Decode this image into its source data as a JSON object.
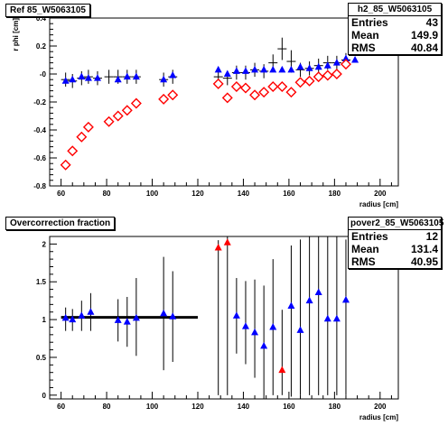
{
  "chart_data": [
    {
      "type": "scatter",
      "title": "Ref 85_W5063105",
      "xlabel": "radius [cm]",
      "ylabel": "r phi [cm]",
      "xlim": [
        55,
        208
      ],
      "ylim": [
        -0.8,
        0.4
      ],
      "x_ticks": [
        60,
        80,
        100,
        120,
        140,
        160,
        180,
        200
      ],
      "y_ticks": [
        -0.8,
        -0.6,
        -0.4,
        -0.2,
        0,
        0.2,
        0.4
      ],
      "y_tick_labels": [
        "-0.8",
        "-0.6",
        "-0.4",
        "-0.2",
        "-0",
        "0.2",
        "0.4"
      ],
      "stats": {
        "name": "h2_85_W5063105",
        "rows": [
          [
            "Entries",
            "43"
          ],
          [
            "Mean",
            "149.9"
          ],
          [
            "RMS",
            "40.84"
          ]
        ]
      },
      "series": [
        {
          "marker": "cross",
          "color": "#000000",
          "x": [
            62,
            65,
            69,
            72,
            76,
            81,
            85,
            89,
            93,
            105,
            109,
            129,
            133,
            137,
            141,
            145,
            149,
            153,
            157,
            161,
            165,
            169,
            173,
            177,
            181,
            185,
            189
          ],
          "y": [
            -0.04,
            -0.05,
            -0.03,
            -0.02,
            -0.03,
            -0.02,
            -0.02,
            -0.02,
            -0.02,
            -0.04,
            -0.02,
            -0.02,
            -0.03,
            0.01,
            0.01,
            0.03,
            0.02,
            0.08,
            0.18,
            0.09,
            0.03,
            0.04,
            0.06,
            0.08,
            0.08,
            0.1,
            0.24
          ],
          "yerr": [
            0.05,
            0.05,
            0.05,
            0.05,
            0.05,
            0.05,
            0.05,
            0.05,
            0.05,
            0.05,
            0.05,
            0.05,
            0.05,
            0.05,
            0.05,
            0.05,
            0.05,
            0.06,
            0.08,
            0.08,
            0.05,
            0.05,
            0.05,
            0.05,
            0.05,
            0.05,
            0.06
          ]
        },
        {
          "marker": "triangle",
          "color": "#0000ff",
          "x": [
            62,
            65,
            69,
            72,
            76,
            85,
            89,
            93,
            105,
            109,
            129,
            133,
            137,
            141,
            145,
            149,
            153,
            157,
            161,
            165,
            169,
            173,
            177,
            181,
            185,
            189
          ],
          "y": [
            -0.05,
            -0.04,
            -0.02,
            -0.03,
            -0.03,
            -0.04,
            -0.02,
            -0.02,
            -0.04,
            -0.01,
            0.03,
            0.0,
            0.02,
            0.02,
            0.03,
            0.03,
            0.03,
            0.03,
            0.03,
            0.05,
            0.04,
            0.05,
            0.06,
            0.08,
            0.11,
            0.1
          ]
        },
        {
          "marker": "open-diamond",
          "color": "#ff0000",
          "x": [
            62,
            65,
            69,
            72,
            81,
            85,
            89,
            93,
            105,
            109,
            129,
            133,
            137,
            141,
            145,
            149,
            153,
            157,
            161,
            165,
            169,
            173,
            177,
            181,
            185,
            189
          ],
          "y": [
            -0.65,
            -0.55,
            -0.45,
            -0.38,
            -0.34,
            -0.3,
            -0.26,
            -0.21,
            -0.18,
            -0.15,
            -0.07,
            -0.17,
            -0.09,
            -0.1,
            -0.15,
            -0.13,
            -0.09,
            -0.09,
            -0.13,
            -0.06,
            -0.05,
            -0.02,
            -0.01,
            0.0,
            0.07,
            0.21
          ]
        }
      ]
    },
    {
      "type": "scatter",
      "title": "Overcorrection fraction",
      "xlabel": "radius [cm]",
      "ylabel": "",
      "xlim": [
        55,
        208
      ],
      "ylim": [
        -0.05,
        2.1
      ],
      "x_ticks": [
        60,
        80,
        100,
        120,
        140,
        160,
        180,
        200
      ],
      "y_ticks": [
        0,
        0.5,
        1,
        1.5,
        2
      ],
      "y_tick_labels": [
        "0",
        "0.5",
        "1",
        "1.5",
        "2"
      ],
      "stats": {
        "name": "pover2_85_W5063105",
        "rows": [
          [
            "Entries",
            "12"
          ],
          [
            "Mean",
            "131.4"
          ],
          [
            "RMS",
            "40.95"
          ]
        ]
      },
      "reference_line": {
        "y": 1.03,
        "x_from": 60,
        "x_to": 120
      },
      "series": [
        {
          "marker": "triangle",
          "color": "#0000ff",
          "x": [
            62,
            65,
            69,
            73,
            85,
            89,
            93,
            105,
            109,
            137,
            141,
            145,
            149,
            153,
            161,
            165,
            169,
            173,
            177,
            181,
            185
          ],
          "y": [
            1.02,
            1.0,
            1.05,
            1.1,
            0.99,
            0.97,
            1.02,
            1.08,
            1.04,
            1.05,
            0.91,
            0.83,
            0.65,
            0.9,
            1.18,
            0.86,
            1.25,
            1.36,
            1.01,
            1.01,
            1.26
          ],
          "yerr_low": [
            0.17,
            0.15,
            0.2,
            0.25,
            0.28,
            0.33,
            0.5,
            0.75,
            0.6,
            0.5,
            0.5,
            0.6,
            0.7,
            0.9,
            1.2,
            0.86,
            1.25,
            1.36,
            1.01,
            1.01,
            1.26
          ],
          "yerr_high": [
            0.14,
            0.14,
            0.2,
            0.25,
            0.28,
            0.33,
            0.53,
            0.75,
            0.6,
            0.5,
            0.6,
            0.7,
            0.8,
            0.9,
            0.8,
            1.2,
            0.9,
            0.8,
            1.1,
            1.1,
            0.8
          ]
        },
        {
          "marker": "triangle",
          "color": "#ff0000",
          "x": [
            129,
            133,
            157
          ],
          "y": [
            1.95,
            2.02,
            0.33
          ],
          "yerr_low": [
            1.95,
            2.02,
            0.33
          ],
          "yerr_high": [
            0.1,
            0.1,
            0.8
          ]
        }
      ]
    }
  ]
}
